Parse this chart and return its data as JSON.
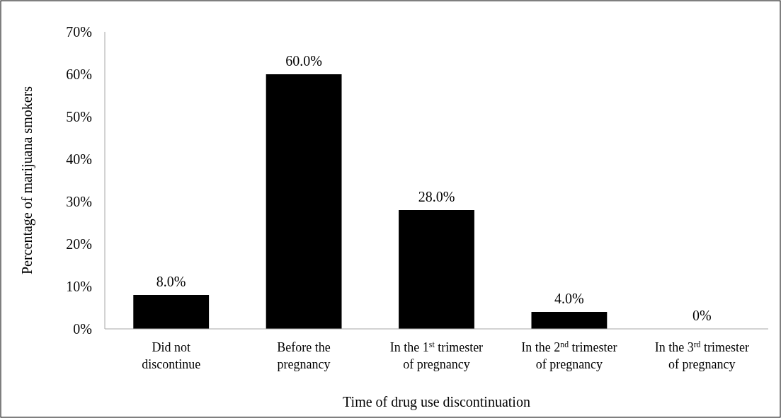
{
  "chart_data": {
    "type": "bar",
    "xlabel": "Time of drug use discontinuation",
    "ylabel": "Percentage of marijuana smokers",
    "categories": [
      "Did not discontinue",
      "Before the pregnancy",
      "In the 1$^{st}$ trimester of pregnancy",
      "In the 2$^{nd}$ trimester of pregnancy",
      "In the 3$^{rd}$ trimester of pregnancy"
    ],
    "values": [
      8,
      60,
      28,
      4,
      0
    ],
    "value_labels": [
      "8.0%",
      "60.0%",
      "28.0%",
      "4.0%",
      "0%"
    ],
    "color": "#000000",
    "ylim": [
      0,
      70
    ],
    "yticks": [
      {
        "value": 0,
        "label": "0%"
      },
      {
        "value": 10,
        "label": "10%"
      },
      {
        "value": 20,
        "label": "20%"
      },
      {
        "value": 30,
        "label": "30%"
      },
      {
        "value": 40,
        "label": "40%"
      },
      {
        "value": 50,
        "label": "50%"
      },
      {
        "value": 60,
        "label": "60%"
      },
      {
        "value": 70,
        "label": "70%"
      }
    ],
    "grid": false
  }
}
